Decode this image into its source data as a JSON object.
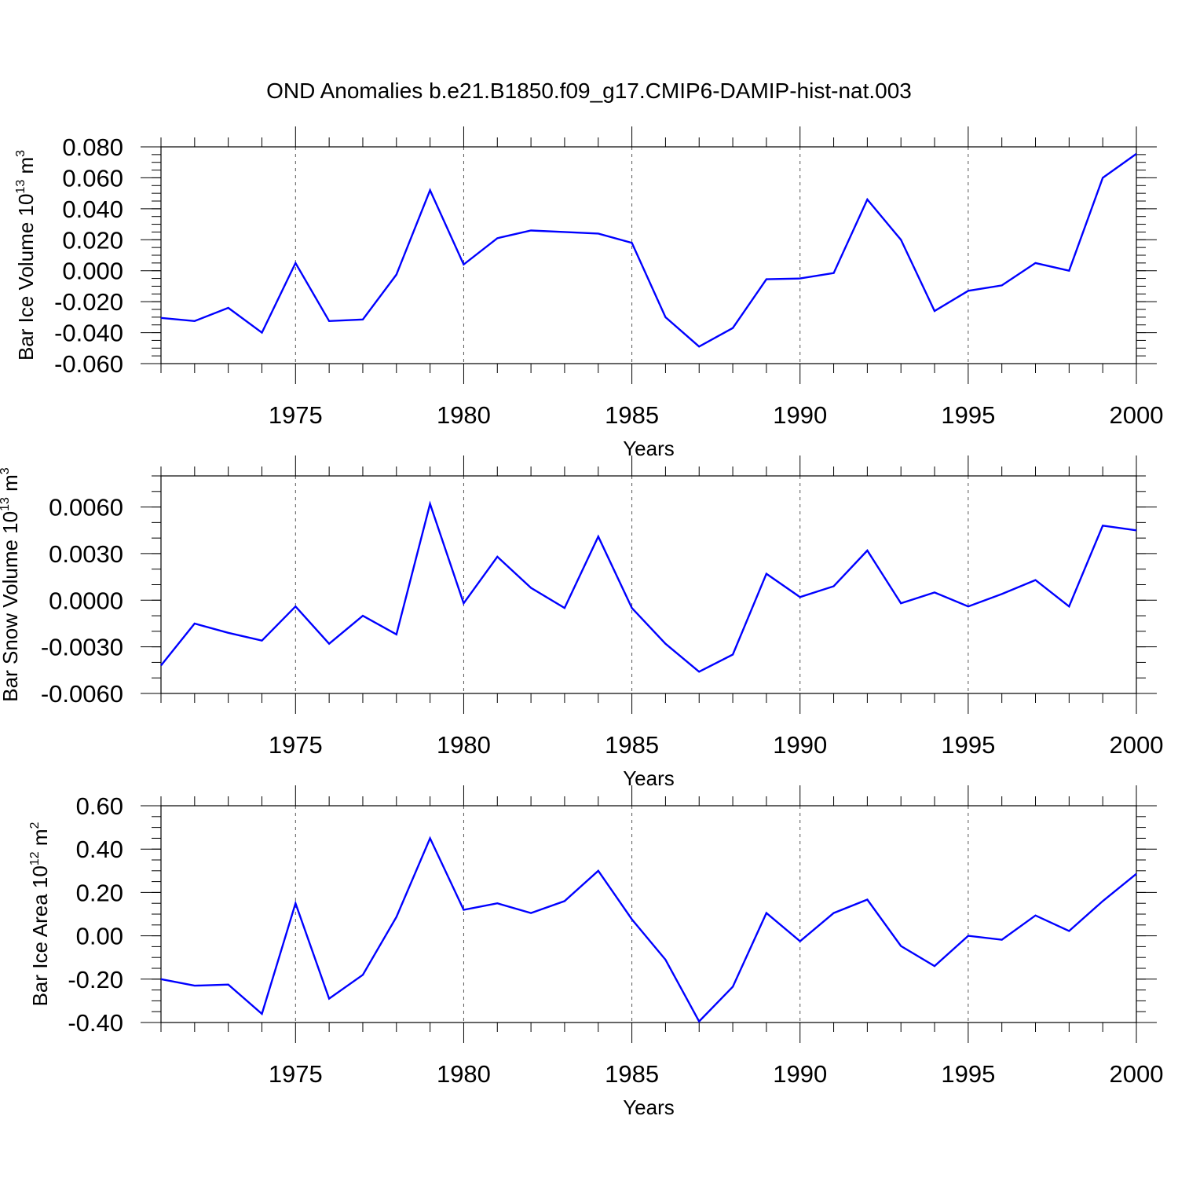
{
  "chart_data": [
    {
      "type": "line",
      "title": "OND Anomalies b.e21.B1850.f09_g17.CMIP6-DAMIP-hist-nat.003",
      "xlabel": "Years",
      "ylabel": {
        "text": "Bar Ice Volume 10",
        "exp": "13",
        "unit": " m",
        "unit_exp": "3"
      },
      "xlim": [
        1971,
        2000
      ],
      "ylim": [
        -0.06,
        0.08
      ],
      "yticks": [
        "-0.060",
        "-0.040",
        "-0.020",
        "0.000",
        "0.020",
        "0.040",
        "0.060",
        "0.080"
      ],
      "ytick_values": [
        -0.06,
        -0.04,
        -0.02,
        0,
        0.02,
        0.04,
        0.06,
        0.08
      ],
      "yminor_step": 0.005,
      "xticks": [
        "1975",
        "1980",
        "1985",
        "1990",
        "1995",
        "2000"
      ],
      "grid": "dashed vertical at x ticks",
      "color": "#0000ff",
      "x": [
        1971,
        1972,
        1973,
        1974,
        1975,
        1976,
        1977,
        1978,
        1979,
        1980,
        1981,
        1982,
        1983,
        1984,
        1985,
        1986,
        1987,
        1988,
        1989,
        1990,
        1991,
        1992,
        1993,
        1994,
        1995,
        1996,
        1997,
        1998,
        1999,
        2000
      ],
      "y": [
        -0.0305,
        -0.0325,
        -0.024,
        -0.04,
        0.005,
        -0.0325,
        -0.0315,
        -0.0025,
        0.052,
        0.004,
        0.021,
        0.026,
        0.025,
        0.024,
        0.018,
        -0.03,
        -0.049,
        -0.037,
        -0.0055,
        -0.005,
        -0.0015,
        0.046,
        0.02,
        -0.026,
        -0.013,
        -0.0095,
        0.005,
        0.0,
        0.06,
        0.0755
      ]
    },
    {
      "type": "line",
      "xlabel": "Years",
      "ylabel": {
        "text": "Bar Snow Volume 10",
        "exp": "13",
        "unit": " m",
        "unit_exp": "3"
      },
      "xlim": [
        1971,
        2000
      ],
      "ylim": [
        -0.006,
        0.008
      ],
      "yticks": [
        "-0.0060",
        "-0.0030",
        "0.0000",
        "0.0030",
        "0.0060"
      ],
      "ytick_values": [
        -0.006,
        -0.003,
        0,
        0.003,
        0.006
      ],
      "yminor_step": 0.001,
      "xticks": [
        "1975",
        "1980",
        "1985",
        "1990",
        "1995",
        "2000"
      ],
      "grid": "dashed vertical at x ticks",
      "color": "#0000ff",
      "x": [
        1971,
        1972,
        1973,
        1974,
        1975,
        1976,
        1977,
        1978,
        1979,
        1980,
        1981,
        1982,
        1983,
        1984,
        1985,
        1986,
        1987,
        1988,
        1989,
        1990,
        1991,
        1992,
        1993,
        1994,
        1995,
        1996,
        1997,
        1998,
        1999,
        2000
      ],
      "y": [
        -0.0042,
        -0.0015,
        -0.0021,
        -0.0026,
        -0.0004,
        -0.0028,
        -0.001,
        -0.0022,
        0.0062,
        -0.0002,
        0.0028,
        0.0008,
        -0.0005,
        0.0041,
        -0.0005,
        -0.0028,
        -0.0046,
        -0.0035,
        0.0017,
        0.0002,
        0.0009,
        0.0032,
        -0.0002,
        0.0005,
        -0.0004,
        0.0004,
        0.0013,
        -0.0004,
        0.0048,
        0.0045
      ]
    },
    {
      "type": "line",
      "xlabel": "Years",
      "ylabel": {
        "text": "Bar Ice Area 10",
        "exp": "12",
        "unit": " m",
        "unit_exp": "2"
      },
      "xlim": [
        1971,
        2000
      ],
      "ylim": [
        -0.4,
        0.6
      ],
      "yticks": [
        "-0.40",
        "-0.20",
        "0.00",
        "0.20",
        "0.40",
        "0.60"
      ],
      "ytick_values": [
        -0.4,
        -0.2,
        0,
        0.2,
        0.4,
        0.6
      ],
      "yminor_step": 0.05,
      "xticks": [
        "1975",
        "1980",
        "1985",
        "1990",
        "1995",
        "2000"
      ],
      "grid": "dashed vertical at x ticks",
      "color": "#0000ff",
      "x": [
        1971,
        1972,
        1973,
        1974,
        1975,
        1976,
        1977,
        1978,
        1979,
        1980,
        1981,
        1982,
        1983,
        1984,
        1985,
        1986,
        1987,
        1988,
        1989,
        1990,
        1991,
        1992,
        1993,
        1994,
        1995,
        1996,
        1997,
        1998,
        1999,
        2000
      ],
      "y": [
        -0.2,
        -0.23,
        -0.225,
        -0.36,
        0.15,
        -0.29,
        -0.18,
        0.087,
        0.45,
        0.12,
        0.15,
        0.105,
        0.16,
        0.3,
        0.076,
        -0.11,
        -0.395,
        -0.235,
        0.105,
        -0.025,
        0.105,
        0.167,
        -0.047,
        -0.14,
        0.0,
        -0.018,
        0.094,
        0.022,
        0.16,
        0.286
      ]
    }
  ]
}
